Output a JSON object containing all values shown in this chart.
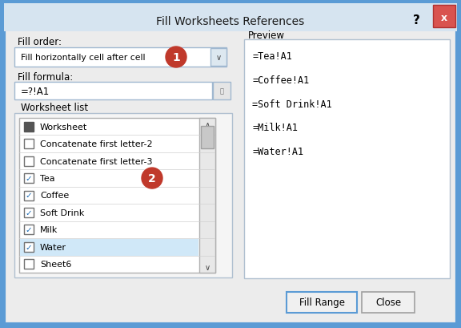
{
  "title": "Fill Worksheets References",
  "bg_color": "#5b9bd5",
  "dialog_bg": "#ececec",
  "fill_order_label": "Fill order:",
  "fill_order_value": "Fill horizontally cell after cell",
  "fill_formula_label": "Fill formula:",
  "fill_formula_value": "=?!A1",
  "worksheet_list_label": "Worksheet list",
  "worksheets": [
    {
      "name": "Worksheet",
      "checked": "square",
      "selected": false
    },
    {
      "name": "Concatenate first letter-2",
      "checked": false,
      "selected": false
    },
    {
      "name": "Concatenate first letter-3",
      "checked": false,
      "selected": false
    },
    {
      "name": "Tea",
      "checked": true,
      "selected": false
    },
    {
      "name": "Coffee",
      "checked": true,
      "selected": false
    },
    {
      "name": "Soft Drink",
      "checked": true,
      "selected": false
    },
    {
      "name": "Milk",
      "checked": true,
      "selected": false
    },
    {
      "name": "Water",
      "checked": true,
      "selected": true
    },
    {
      "name": "Sheet6",
      "checked": false,
      "selected": false
    }
  ],
  "preview_label": "Preview",
  "preview_lines": [
    "=Tea!A1",
    "=Coffee!A1",
    "=Soft Drink!A1",
    "=Milk!A1",
    "=Water!A1"
  ],
  "btn1_label": "Fill Range",
  "btn2_label": "Close",
  "circle_color": "#c0392b",
  "close_btn_color": "#d9534f",
  "check_color": "#1a6bb5",
  "selected_row_color": "#d0e8f8",
  "scrollbar_color": "#c8c8c8",
  "border_color": "#8aabcf",
  "input_border": "#a0b8d0"
}
